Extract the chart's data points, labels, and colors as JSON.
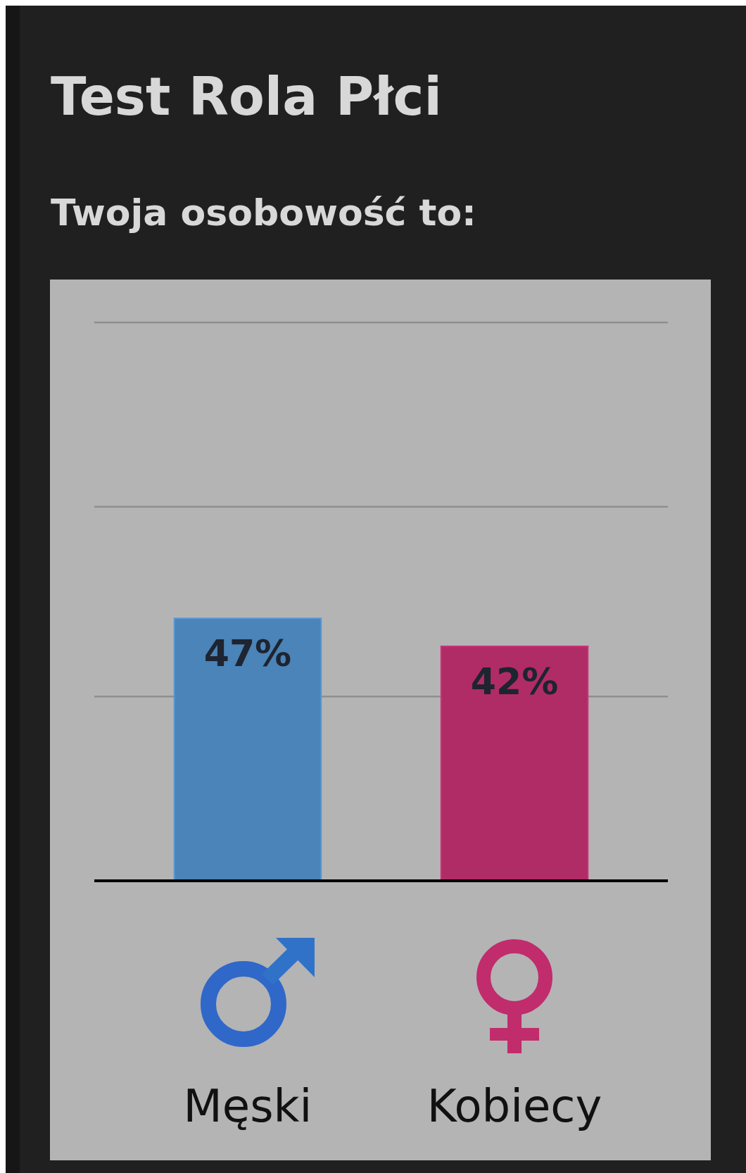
{
  "chart_data": {
    "type": "bar",
    "title": "Test Rola Płci",
    "subtitle": "Twoja osobowość to:",
    "categories": [
      "Męski",
      "Kobiecy"
    ],
    "values": [
      47,
      42
    ],
    "colors": [
      "#4a84b8",
      "#b02c66"
    ],
    "value_labels": [
      "47%",
      "42%"
    ],
    "ylim": [
      0,
      100
    ],
    "yticks": [
      {
        "value": 0,
        "label": null
      },
      {
        "value": 33,
        "label": null
      },
      {
        "value": 67,
        "label": null
      },
      {
        "value": 100,
        "label": null
      }
    ],
    "grid": "y"
  }
}
